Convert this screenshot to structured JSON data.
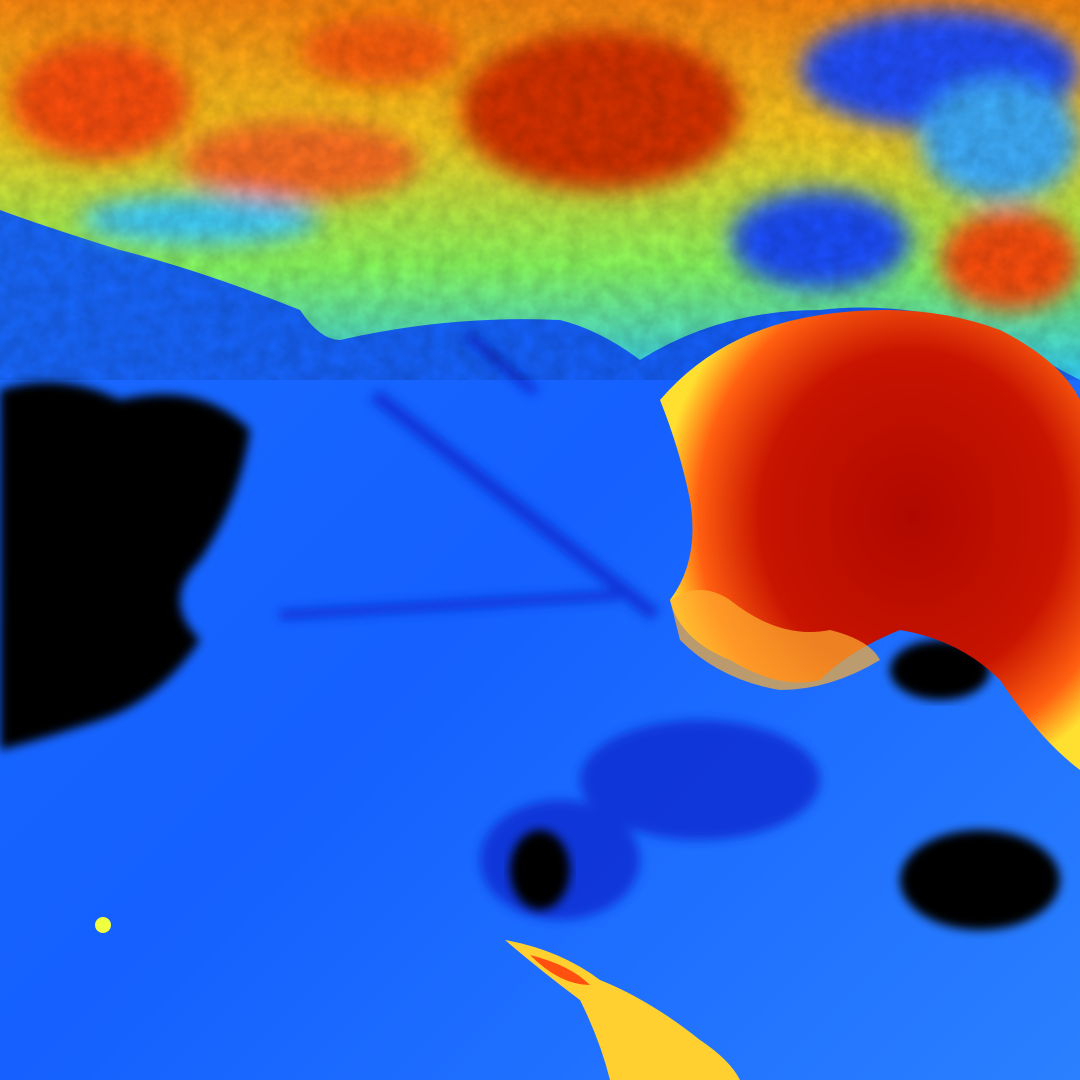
{
  "image": {
    "kind": "false-color satellite thermal image of a coastline",
    "palette": {
      "ocean": "#1560ff",
      "ocean_dark": "#0a2ee0",
      "cold_patch": "#000000",
      "land_cool": "#2ee0ff",
      "land_mid": "#f4ff30",
      "land_warm": "#ff7a10",
      "land_hot": "#c81000"
    }
  }
}
